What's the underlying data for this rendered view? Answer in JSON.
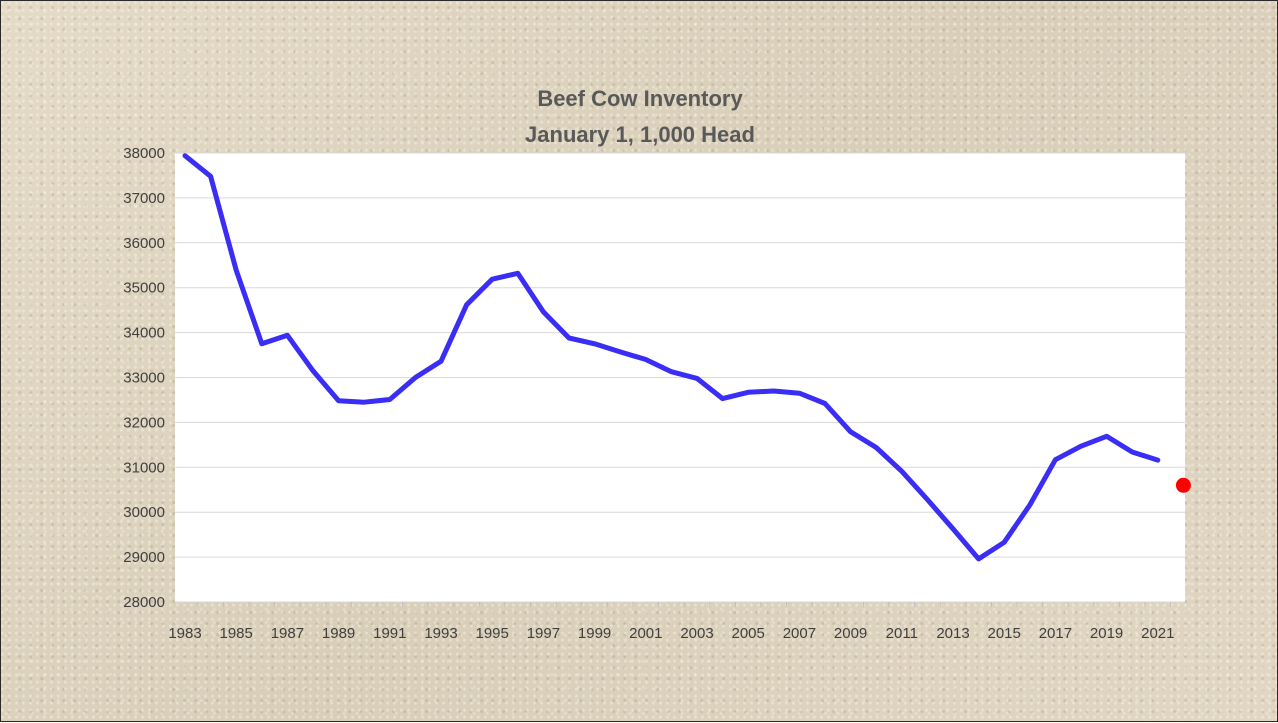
{
  "chart_data": {
    "type": "line",
    "title": "Beef Cow Inventory",
    "subtitle": "January 1, 1,000 Head",
    "xlabel": "",
    "ylabel": "",
    "x": [
      1983,
      1984,
      1985,
      1986,
      1987,
      1988,
      1989,
      1990,
      1991,
      1992,
      1993,
      1994,
      1995,
      1996,
      1997,
      1998,
      1999,
      2000,
      2001,
      2002,
      2003,
      2004,
      2005,
      2006,
      2007,
      2008,
      2009,
      2010,
      2011,
      2012,
      2013,
      2014,
      2015,
      2016,
      2017,
      2018,
      2019,
      2020,
      2021
    ],
    "x_tick_labels": [
      "1983",
      "1985",
      "1987",
      "1989",
      "1991",
      "1993",
      "1995",
      "1997",
      "1999",
      "2001",
      "2003",
      "2005",
      "2007",
      "2009",
      "2011",
      "2013",
      "2015",
      "2017",
      "2019",
      "2021"
    ],
    "y_tick_labels": [
      "38000",
      "37000",
      "36000",
      "35000",
      "34000",
      "33000",
      "32000",
      "31000",
      "30000",
      "29000",
      "28000"
    ],
    "ylim": [
      28000,
      38000
    ],
    "grid": "horizontal",
    "series": [
      {
        "color": "#3a2df5",
        "values": [
          37940,
          37480,
          35390,
          33750,
          33940,
          33150,
          32480,
          32450,
          32510,
          33000,
          33360,
          34620,
          35190,
          35320,
          34460,
          33880,
          33750,
          33570,
          33400,
          33130,
          32980,
          32530,
          32670,
          32700,
          32650,
          32420,
          31790,
          31440,
          30910,
          30280,
          29630,
          28960,
          29330,
          30160,
          31170,
          31470,
          31690,
          31340,
          31160
        ]
      },
      {
        "type": "point",
        "color": "#ff0000",
        "points": [
          {
            "x": 2022,
            "y": 30600
          }
        ]
      }
    ]
  }
}
